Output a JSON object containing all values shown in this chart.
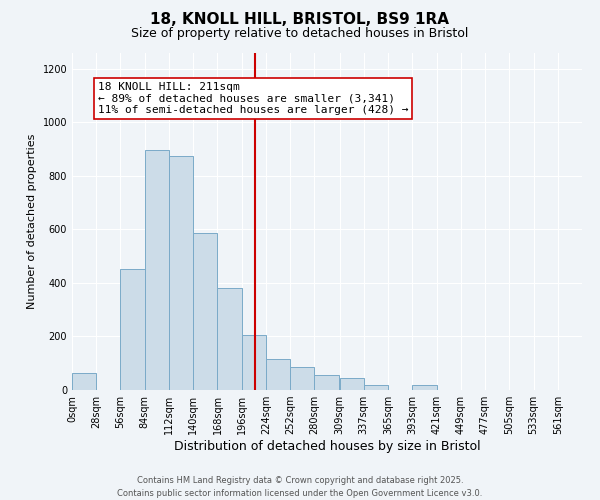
{
  "title": "18, KNOLL HILL, BRISTOL, BS9 1RA",
  "subtitle": "Size of property relative to detached houses in Bristol",
  "xlabel": "Distribution of detached houses by size in Bristol",
  "ylabel": "Number of detached properties",
  "bar_color": "#ccdce8",
  "bar_edge_color": "#7aaac8",
  "bin_labels": [
    "0sqm",
    "28sqm",
    "56sqm",
    "84sqm",
    "112sqm",
    "140sqm",
    "168sqm",
    "196sqm",
    "224sqm",
    "252sqm",
    "280sqm",
    "309sqm",
    "337sqm",
    "365sqm",
    "393sqm",
    "421sqm",
    "449sqm",
    "477sqm",
    "505sqm",
    "533sqm",
    "561sqm"
  ],
  "bin_starts": [
    0,
    28,
    56,
    84,
    112,
    140,
    168,
    196,
    224,
    252,
    280,
    309,
    337,
    365,
    393,
    421,
    449,
    477,
    505,
    533,
    561
  ],
  "bin_width": 28,
  "bar_heights": [
    65,
    0,
    450,
    895,
    875,
    585,
    380,
    205,
    115,
    85,
    55,
    45,
    18,
    0,
    18,
    0,
    0,
    0,
    0,
    0,
    0
  ],
  "ylim": [
    0,
    1260
  ],
  "yticks": [
    0,
    200,
    400,
    600,
    800,
    1000,
    1200
  ],
  "vline_x": 211,
  "vline_color": "#cc0000",
  "annotation_text": "18 KNOLL HILL: 211sqm\n← 89% of detached houses are smaller (3,341)\n11% of semi-detached houses are larger (428) →",
  "annotation_box_color": "#ffffff",
  "annotation_box_edge": "#cc0000",
  "background_color": "#f0f4f8",
  "footer_line1": "Contains HM Land Registry data © Crown copyright and database right 2025.",
  "footer_line2": "Contains public sector information licensed under the Open Government Licence v3.0.",
  "title_fontsize": 11,
  "subtitle_fontsize": 9,
  "xlabel_fontsize": 9,
  "ylabel_fontsize": 8,
  "tick_fontsize": 7,
  "annotation_fontsize": 8,
  "footer_fontsize": 6
}
